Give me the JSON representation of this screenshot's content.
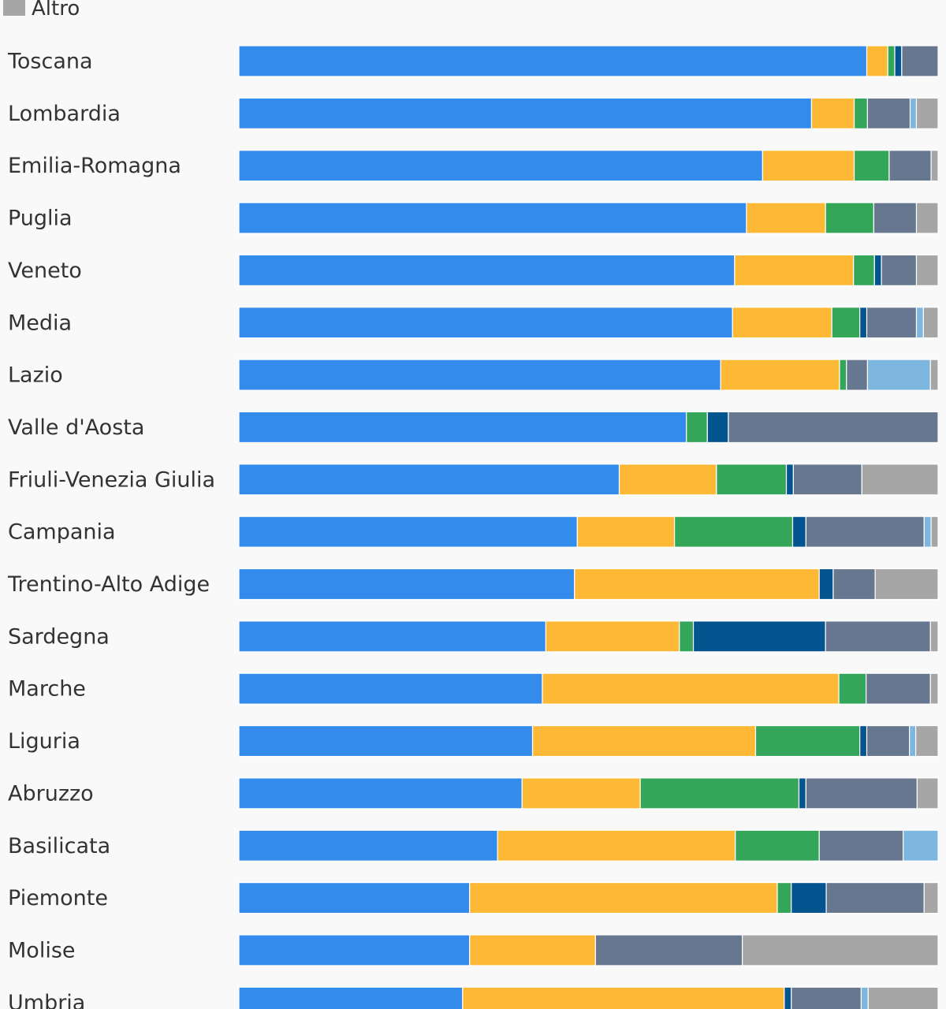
{
  "chart_data": {
    "type": "bar",
    "orientation": "horizontal",
    "stacked": true,
    "normalized": true,
    "title": "",
    "xlabel": "",
    "ylabel": "",
    "xlim": [
      0,
      100
    ],
    "grid": false,
    "legend": {
      "position": "top-left",
      "entries": [
        {
          "label": "Altro",
          "color": "#a6a6a6"
        }
      ]
    },
    "series": [
      {
        "name": "",
        "color": "#338beb"
      },
      {
        "name": "",
        "color": "#fdb935"
      },
      {
        "name": "",
        "color": "#33a659"
      },
      {
        "name": "",
        "color": "#03548f"
      },
      {
        "name": "",
        "color": "#66778f"
      },
      {
        "name": "",
        "color": "#7db6de"
      },
      {
        "name": "Altro",
        "color": "#a6a6a6"
      }
    ],
    "categories": [
      "Toscana",
      "Lombardia",
      "Emilia-Romagna",
      "Puglia",
      "Veneto",
      "Media",
      "Lazio",
      "Valle d'Aosta",
      "Friuli-Venezia Giulia",
      "Campania",
      "Trentino-Alto Adige",
      "Sardegna",
      "Marche",
      "Liguria",
      "Abruzzo",
      "Basilicata",
      "Piemonte",
      "Molise",
      "Umbria"
    ],
    "values": [
      [
        89.8,
        3.0,
        1.0,
        1.0,
        5.2,
        0.0,
        0.0
      ],
      [
        81.9,
        6.1,
        1.9,
        0.0,
        6.1,
        0.9,
        3.1
      ],
      [
        74.9,
        13.1,
        5.0,
        0.0,
        6.0,
        0.0,
        1.0
      ],
      [
        72.6,
        11.3,
        6.9,
        0.0,
        6.1,
        0.0,
        3.1
      ],
      [
        70.9,
        17.0,
        3.0,
        1.0,
        5.0,
        0.0,
        3.1
      ],
      [
        70.6,
        14.2,
        4.0,
        1.0,
        7.1,
        1.0,
        2.1
      ],
      [
        68.9,
        17.0,
        1.0,
        0.0,
        3.0,
        9.0,
        1.1
      ],
      [
        64.0,
        0.0,
        3.0,
        3.0,
        30.0,
        0.0,
        0.0
      ],
      [
        54.4,
        13.9,
        10.0,
        1.0,
        9.8,
        0.0,
        10.9
      ],
      [
        48.4,
        13.9,
        16.9,
        1.9,
        16.9,
        1.0,
        1.0
      ],
      [
        48.0,
        35.0,
        0.0,
        2.0,
        6.0,
        0.0,
        9.0
      ],
      [
        43.9,
        19.1,
        2.0,
        18.9,
        15.0,
        0.0,
        1.1
      ],
      [
        43.4,
        42.4,
        3.9,
        0.0,
        9.2,
        0.0,
        1.1
      ],
      [
        42.0,
        31.9,
        14.9,
        1.0,
        6.1,
        0.9,
        3.2
      ],
      [
        40.5,
        16.9,
        22.7,
        1.0,
        15.9,
        0.0,
        3.0
      ],
      [
        37.0,
        34.0,
        12.0,
        0.0,
        12.0,
        5.0,
        0.0
      ],
      [
        33.0,
        44.0,
        2.0,
        5.0,
        14.0,
        0.0,
        2.0
      ],
      [
        33.0,
        18.0,
        0.0,
        0.0,
        21.0,
        0.0,
        28.0
      ],
      [
        32.0,
        46.0,
        0.0,
        1.0,
        10.0,
        1.0,
        10.0
      ]
    ]
  }
}
